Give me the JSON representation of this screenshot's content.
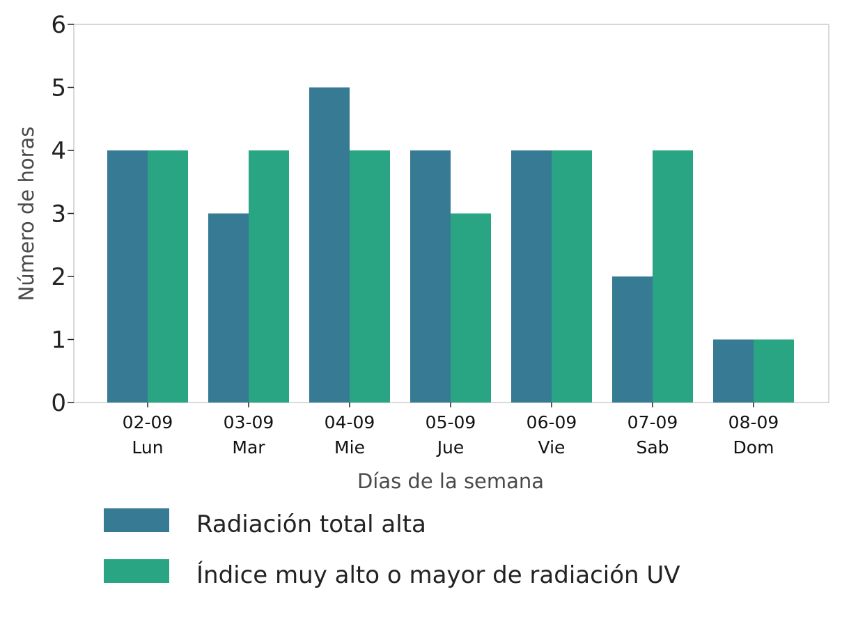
{
  "chart_data": {
    "type": "bar",
    "categories": [
      {
        "date": "02-09",
        "day": "Lun"
      },
      {
        "date": "03-09",
        "day": "Mar"
      },
      {
        "date": "04-09",
        "day": "Mie"
      },
      {
        "date": "05-09",
        "day": "Jue"
      },
      {
        "date": "06-09",
        "day": "Vie"
      },
      {
        "date": "07-09",
        "day": "Sab"
      },
      {
        "date": "08-09",
        "day": "Dom"
      }
    ],
    "series": [
      {
        "name": "Radiación total alta",
        "color": "#377a94",
        "values": [
          4,
          3,
          5,
          4,
          4,
          2,
          1
        ]
      },
      {
        "name": "Índice muy alto o mayor de radiación UV",
        "color": "#29a584",
        "values": [
          4,
          4,
          4,
          3,
          4,
          4,
          1
        ]
      }
    ],
    "xlabel": "Días de la semana",
    "ylabel": "Número de horas",
    "ylim": [
      0,
      6
    ],
    "yticks": [
      0,
      1,
      2,
      3,
      4,
      5,
      6
    ],
    "grid": false,
    "legend_position": "bottom"
  }
}
